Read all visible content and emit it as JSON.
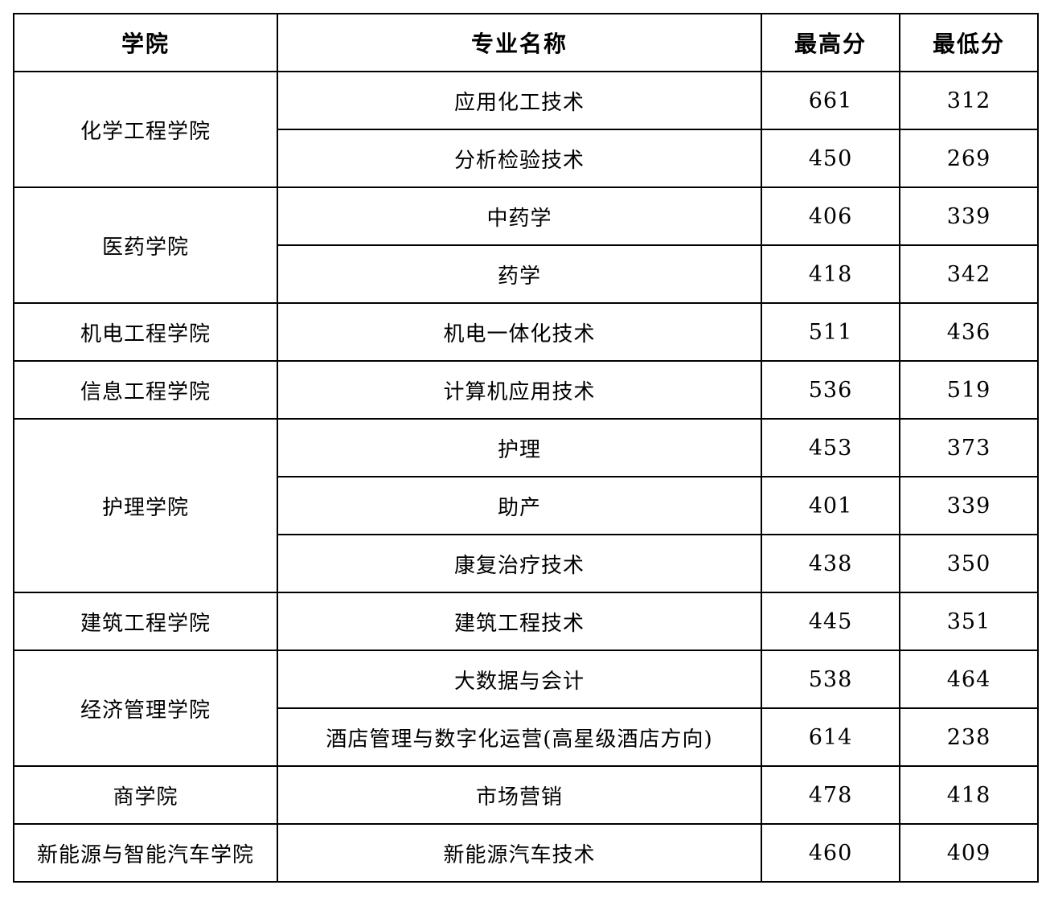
{
  "table": {
    "headers": [
      "学院",
      "专业名称",
      "最高分",
      "最低分"
    ],
    "colleges": [
      {
        "name": "化学工程学院",
        "majors": [
          {
            "name": "应用化工技术",
            "max": "661",
            "min": "312"
          },
          {
            "name": "分析检验技术",
            "max": "450",
            "min": "269"
          }
        ]
      },
      {
        "name": "医药学院",
        "majors": [
          {
            "name": "中药学",
            "max": "406",
            "min": "339"
          },
          {
            "name": "药学",
            "max": "418",
            "min": "342"
          }
        ]
      },
      {
        "name": "机电工程学院",
        "majors": [
          {
            "name": "机电一体化技术",
            "max": "511",
            "min": "436"
          }
        ]
      },
      {
        "name": "信息工程学院",
        "majors": [
          {
            "name": "计算机应用技术",
            "max": "536",
            "min": "519"
          }
        ]
      },
      {
        "name": "护理学院",
        "majors": [
          {
            "name": "护理",
            "max": "453",
            "min": "373"
          },
          {
            "name": "助产",
            "max": "401",
            "min": "339"
          },
          {
            "name": "康复治疗技术",
            "max": "438",
            "min": "350"
          }
        ]
      },
      {
        "name": "建筑工程学院",
        "majors": [
          {
            "name": "建筑工程技术",
            "max": "445",
            "min": "351"
          }
        ]
      },
      {
        "name": "经济管理学院",
        "majors": [
          {
            "name": "大数据与会计",
            "max": "538",
            "min": "464"
          },
          {
            "name": "酒店管理与数字化运营(高星级酒店方向)",
            "max": "614",
            "min": "238"
          }
        ]
      },
      {
        "name": "商学院",
        "majors": [
          {
            "name": "市场营销",
            "max": "478",
            "min": "418"
          }
        ]
      },
      {
        "name": "新能源与智能汽车学院",
        "majors": [
          {
            "name": "新能源汽车技术",
            "max": "460",
            "min": "409"
          }
        ]
      }
    ]
  }
}
